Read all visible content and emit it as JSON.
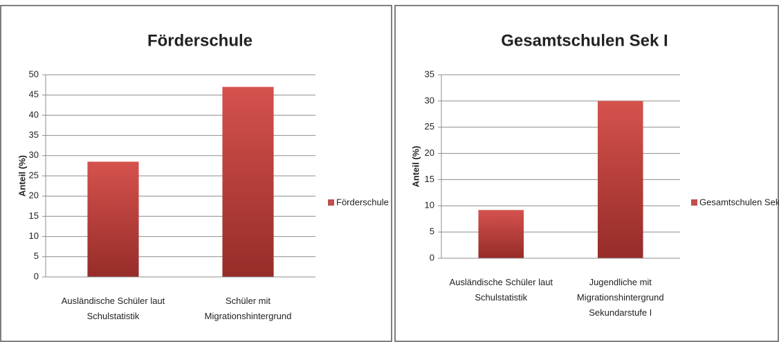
{
  "chart_data": [
    {
      "type": "bar",
      "title": "Förderschule",
      "y_label": "Anteil (%)",
      "categories": [
        "Ausländische Schüler laut Schulstatistik",
        "Schüler mit Migrationshintergrund"
      ],
      "series": [
        {
          "name": "Förderschule",
          "color": "#c0504d",
          "values": [
            28.5,
            47
          ]
        }
      ],
      "ylim": [
        0,
        50
      ],
      "yticks": [
        0,
        5,
        10,
        15,
        20,
        25,
        30,
        35,
        40,
        45,
        50
      ],
      "grid": true,
      "legend": "right"
    },
    {
      "type": "bar",
      "title": "Gesamtschulen Sek I",
      "y_label": "Anteil (%)",
      "categories": [
        "Ausländische Schüler laut Schulstatistik",
        "Jugendliche mit Migrationshintergrund Sekundarstufe I"
      ],
      "series": [
        {
          "name": "Gesamtschulen Sek I",
          "color": "#c0504d",
          "values": [
            9.2,
            30
          ]
        }
      ],
      "ylim": [
        0,
        35
      ],
      "yticks": [
        0,
        5,
        10,
        15,
        20,
        25,
        30,
        35
      ],
      "grid": true,
      "legend": "right"
    }
  ]
}
